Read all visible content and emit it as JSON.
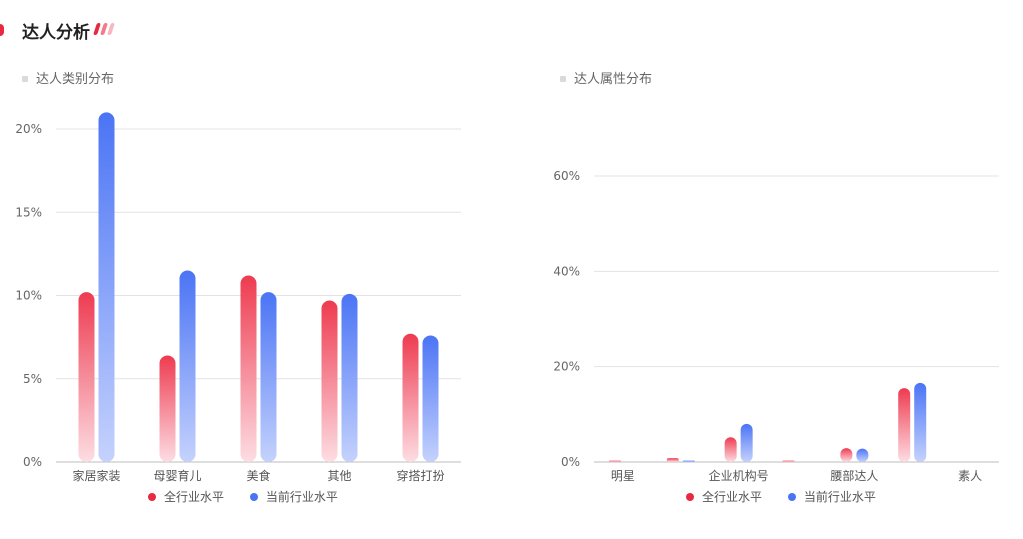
{
  "header": {
    "title": "达人分析"
  },
  "colors": {
    "accent": "#e8293f",
    "red_top": "#ee3b50",
    "red_bottom": "#fddde3",
    "blue_top": "#4b74f5",
    "blue_bottom": "#c5d2fd",
    "grid": "#e3e3e3",
    "axis": "#bdbdbd"
  },
  "chart_data": [
    {
      "type": "bar",
      "title": "达人类别分布",
      "categories": [
        "家居家装",
        "母婴育儿",
        "美食",
        "其他",
        "穿搭打扮"
      ],
      "series": [
        {
          "name": "全行业水平",
          "values": [
            10.2,
            6.4,
            11.2,
            9.7,
            7.7
          ]
        },
        {
          "name": "当前行业水平",
          "values": [
            21.0,
            11.5,
            10.2,
            10.1,
            7.6
          ]
        }
      ],
      "yticks": [
        "0%",
        "5%",
        "10%",
        "15%",
        "20%"
      ],
      "ylim": [
        0,
        20
      ],
      "legend": "bottom"
    },
    {
      "type": "bar",
      "title": "达人属性分布",
      "categories": [
        "明星",
        "",
        "企业机构号",
        "",
        "腰部达人",
        "",
        "素人"
      ],
      "series": [
        {
          "name": "全行业水平",
          "values": [
            0.3,
            0.8,
            5.2,
            0.3,
            2.9,
            15.5,
            0.0
          ]
        },
        {
          "name": "当前行业水平",
          "values": [
            0.0,
            0.3,
            8.0,
            0.0,
            2.8,
            16.6,
            0.0
          ]
        }
      ],
      "yticks": [
        "0%",
        "20%",
        "40%",
        "60%"
      ],
      "ylim": [
        0,
        60
      ],
      "legend": "bottom"
    }
  ]
}
